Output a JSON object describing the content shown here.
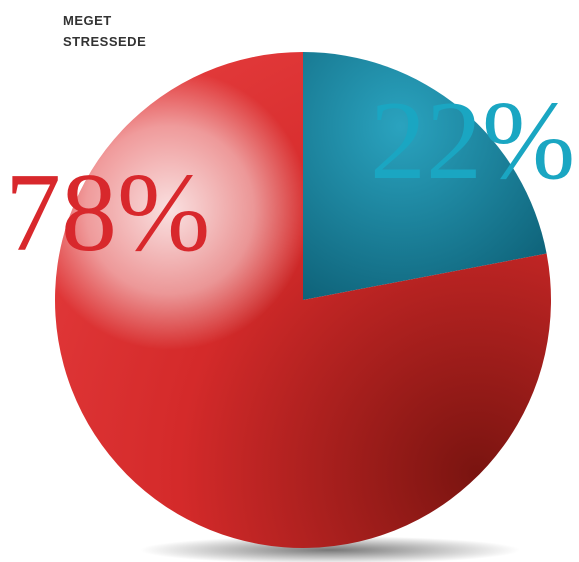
{
  "chart_data": {
    "type": "pie",
    "title": "MEGET STRESSEDE",
    "series": [
      {
        "values": [
          22,
          78
        ],
        "value_labels": [
          "22%",
          "78%"
        ],
        "colors": [
          "#1a8aa6",
          "#d8282c"
        ],
        "label_colors": [
          "#1aa6c2",
          "#d8282c"
        ]
      }
    ]
  }
}
